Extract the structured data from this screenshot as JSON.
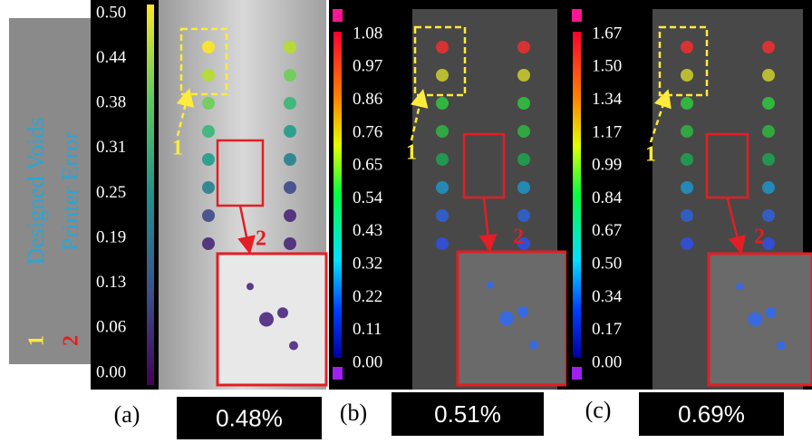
{
  "side_legend": {
    "labels": [
      "Designed Voids",
      "Printer Error"
    ],
    "markers": [
      "1",
      "2"
    ]
  },
  "panels": [
    {
      "label": "(a)",
      "percent": "0.48%",
      "colorbar_ticks": [
        "0.50",
        "0.44",
        "0.38",
        "0.31",
        "0.25",
        "0.19",
        "0.13",
        "0.06",
        "0.00"
      ],
      "callouts": [
        "1",
        "2"
      ]
    },
    {
      "label": "(b)",
      "percent": "0.51%",
      "colorbar_ticks": [
        "1.08",
        "0.97",
        "0.86",
        "0.76",
        "0.65",
        "0.54",
        "0.43",
        "0.32",
        "0.22",
        "0.11",
        "0.00"
      ],
      "callouts": [
        "1",
        "2"
      ]
    },
    {
      "label": "(c)",
      "percent": "0.69%",
      "colorbar_ticks": [
        "1.67",
        "1.50",
        "1.34",
        "1.17",
        "0.99",
        "0.84",
        "0.67",
        "0.50",
        "0.34",
        "0.17",
        "0.00"
      ],
      "callouts": [
        "1",
        "2"
      ]
    }
  ]
}
